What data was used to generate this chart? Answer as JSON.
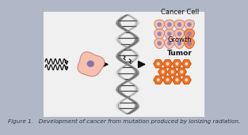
{
  "bg_color": "#b0b8c8",
  "inner_bg": "#f0f0f0",
  "caption": "Figure 1.   Development of cancer from mutation produced by ionizing radiation.",
  "caption_fontsize": 5.2,
  "title_cancer_cell": "Cancer Cell",
  "title_growth": "Growth",
  "title_tumor": "Tumor",
  "arrow_color": "#111111",
  "dna_dark": "#888888",
  "dna_light": "#cccccc",
  "cell_fill": "#f5c0b0",
  "cell_stroke": "#cc8877",
  "cell_nucleus_fill": "#8888cc",
  "normal_cell_fill": "#f5c0b0",
  "normal_cell_stroke": "#cc8877",
  "normal_nucleus_fill": "#7777bb",
  "wave_color": "#111111",
  "tumor_cell_fill": "#f07030",
  "tumor_cell_stroke": "#cc5500",
  "cancer_highlight_fill": "#f09060",
  "cancer_highlight_stroke": "#dd6633"
}
